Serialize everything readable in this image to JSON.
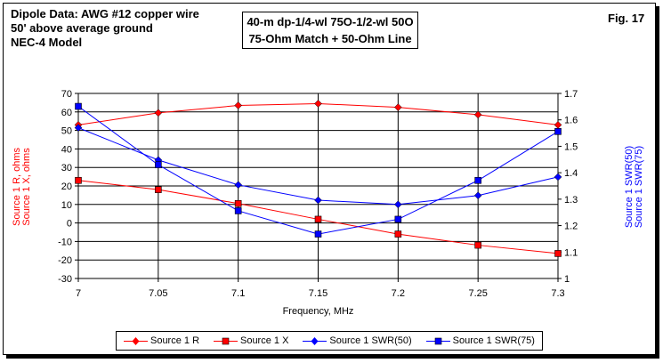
{
  "header": {
    "line1": "Dipole Data:  AWG #12 copper wire",
    "line2": "50' above average ground",
    "line3": "NEC-4 Model",
    "box1": "40-m dp-1/4-wl 75O-1/2-wl 50O",
    "box2": "75-Ohm Match + 50-Ohm Line",
    "fig": "Fig. 17"
  },
  "chart_data": {
    "type": "line",
    "xlabel": "Frequency, MHz",
    "ylabel_left": [
      "Source 1 R, ohms",
      "Source 1 X, ohms"
    ],
    "ylabel_right": [
      "Source 1 SWR(50)",
      "Source 1 SWR(75)"
    ],
    "x": [
      7,
      7.05,
      7.1,
      7.15,
      7.2,
      7.25,
      7.3
    ],
    "x_ticks": [
      "7",
      "7.05",
      "7.1",
      "7.15",
      "7.2",
      "7.25",
      "7.3"
    ],
    "ylim_left": [
      -30,
      70
    ],
    "y_ticks_left": [
      "70",
      "60",
      "50",
      "40",
      "30",
      "20",
      "10",
      "0",
      "-10",
      "-20",
      "-30"
    ],
    "ylim_right": [
      1,
      1.7
    ],
    "y_ticks_right": [
      "1.7",
      "1.6",
      "1.5",
      "1.4",
      "1.3",
      "1.2",
      "1.1",
      "1"
    ],
    "grid": true,
    "legend_position": "bottom",
    "series": [
      {
        "name": "Source 1 R",
        "axis": "left",
        "color": "#ff0000",
        "marker": "diamond",
        "values": [
          53,
          59.5,
          63.5,
          64.5,
          62.5,
          58.5,
          53
        ]
      },
      {
        "name": "Source 1 X",
        "axis": "left",
        "color": "#ff0000",
        "marker": "square",
        "values": [
          23,
          18,
          10.5,
          2,
          -6,
          -12,
          -16.5
        ]
      },
      {
        "name": "Source 1 SWR(50)",
        "axis": "right",
        "color": "#0000ff",
        "marker": "diamond",
        "values": [
          1.57,
          1.448,
          1.354,
          1.296,
          1.28,
          1.314,
          1.384
        ]
      },
      {
        "name": "Source 1 SWR(75)",
        "axis": "right",
        "color": "#0000ff",
        "marker": "square",
        "values": [
          1.651,
          1.43,
          1.256,
          1.168,
          1.224,
          1.371,
          1.556
        ]
      }
    ]
  }
}
